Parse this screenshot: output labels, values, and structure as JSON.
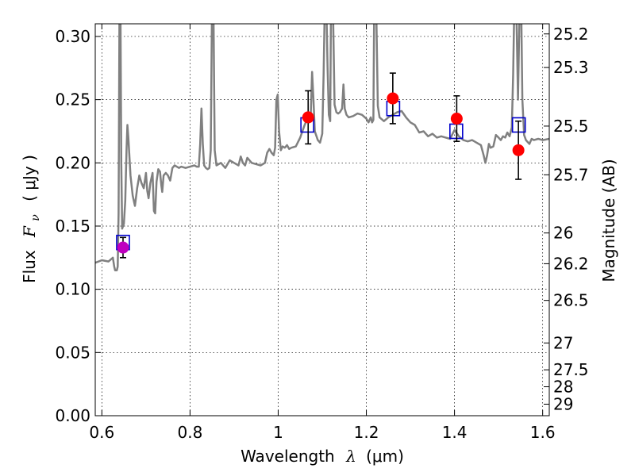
{
  "chart_data": {
    "type": "scatter",
    "xlabel_text": "Wavelength",
    "xlabel_symbol": "λ",
    "xlabel_unit": "(μm)",
    "ylabel_text": "Flux",
    "ylabel_symbol": "F",
    "ylabel_sub": "ν",
    "ylabel_unit": "( μJy )",
    "y2label": "Magnitude (AB)",
    "xlim": [
      0.585,
      1.615
    ],
    "ylim": [
      0.0,
      0.31
    ],
    "x_ticks": [
      0.6,
      0.8,
      1.0,
      1.2,
      1.4,
      1.6
    ],
    "x_tick_labels": [
      "0.6",
      "0.8",
      "1",
      "1.2",
      "1.4",
      "1.6"
    ],
    "y_ticks": [
      0.0,
      0.05,
      0.1,
      0.15,
      0.2,
      0.25,
      0.3
    ],
    "y_tick_labels": [
      "0.00",
      "0.05",
      "0.10",
      "0.15",
      "0.20",
      "0.25",
      "0.30"
    ],
    "y2_tick_labels": [
      "25.2",
      "25.3",
      "25.5",
      "25.7",
      "26",
      "26.2",
      "26.5",
      "27",
      "27.5",
      "28",
      "29"
    ],
    "grid": true,
    "series": [
      {
        "kind": "spectrum_line",
        "color": "#808080",
        "points": [
          [
            0.585,
            0.121
          ],
          [
            0.6,
            0.123
          ],
          [
            0.615,
            0.122
          ],
          [
            0.625,
            0.125
          ],
          [
            0.628,
            0.118
          ],
          [
            0.63,
            0.115
          ],
          [
            0.634,
            0.115
          ],
          [
            0.636,
            0.118
          ],
          [
            0.638,
            0.16
          ],
          [
            0.64,
            0.32
          ],
          [
            0.642,
            0.33
          ],
          [
            0.644,
            0.2
          ],
          [
            0.646,
            0.148
          ],
          [
            0.65,
            0.152
          ],
          [
            0.653,
            0.17
          ],
          [
            0.656,
            0.21
          ],
          [
            0.658,
            0.23
          ],
          [
            0.66,
            0.22
          ],
          [
            0.665,
            0.19
          ],
          [
            0.67,
            0.174
          ],
          [
            0.675,
            0.166
          ],
          [
            0.68,
            0.18
          ],
          [
            0.685,
            0.19
          ],
          [
            0.69,
            0.184
          ],
          [
            0.695,
            0.18
          ],
          [
            0.7,
            0.192
          ],
          [
            0.703,
            0.178
          ],
          [
            0.706,
            0.172
          ],
          [
            0.71,
            0.184
          ],
          [
            0.715,
            0.192
          ],
          [
            0.718,
            0.162
          ],
          [
            0.721,
            0.16
          ],
          [
            0.724,
            0.185
          ],
          [
            0.728,
            0.195
          ],
          [
            0.732,
            0.193
          ],
          [
            0.735,
            0.182
          ],
          [
            0.737,
            0.177
          ],
          [
            0.74,
            0.19
          ],
          [
            0.745,
            0.192
          ],
          [
            0.75,
            0.19
          ],
          [
            0.755,
            0.186
          ],
          [
            0.76,
            0.196
          ],
          [
            0.765,
            0.198
          ],
          [
            0.77,
            0.197
          ],
          [
            0.775,
            0.196
          ],
          [
            0.78,
            0.197
          ],
          [
            0.79,
            0.196
          ],
          [
            0.8,
            0.197
          ],
          [
            0.81,
            0.198
          ],
          [
            0.815,
            0.197
          ],
          [
            0.82,
            0.197
          ],
          [
            0.823,
            0.215
          ],
          [
            0.826,
            0.243
          ],
          [
            0.829,
            0.215
          ],
          [
            0.832,
            0.198
          ],
          [
            0.836,
            0.196
          ],
          [
            0.84,
            0.195
          ],
          [
            0.844,
            0.196
          ],
          [
            0.847,
            0.21
          ],
          [
            0.85,
            0.33
          ],
          [
            0.853,
            0.33
          ],
          [
            0.856,
            0.21
          ],
          [
            0.86,
            0.198
          ],
          [
            0.87,
            0.2
          ],
          [
            0.88,
            0.196
          ],
          [
            0.89,
            0.202
          ],
          [
            0.9,
            0.2
          ],
          [
            0.91,
            0.198
          ],
          [
            0.915,
            0.205
          ],
          [
            0.92,
            0.2
          ],
          [
            0.925,
            0.198
          ],
          [
            0.93,
            0.204
          ],
          [
            0.94,
            0.2
          ],
          [
            0.95,
            0.199
          ],
          [
            0.96,
            0.198
          ],
          [
            0.97,
            0.2
          ],
          [
            0.975,
            0.208
          ],
          [
            0.98,
            0.211
          ],
          [
            0.985,
            0.208
          ],
          [
            0.99,
            0.206
          ],
          [
            0.993,
            0.212
          ],
          [
            0.996,
            0.25
          ],
          [
            0.999,
            0.254
          ],
          [
            1.002,
            0.225
          ],
          [
            1.006,
            0.21
          ],
          [
            1.01,
            0.213
          ],
          [
            1.015,
            0.212
          ],
          [
            1.02,
            0.214
          ],
          [
            1.025,
            0.211
          ],
          [
            1.03,
            0.212
          ],
          [
            1.04,
            0.213
          ],
          [
            1.05,
            0.22
          ],
          [
            1.06,
            0.23
          ],
          [
            1.065,
            0.234
          ],
          [
            1.07,
            0.232
          ],
          [
            1.074,
            0.24
          ],
          [
            1.077,
            0.272
          ],
          [
            1.08,
            0.25
          ],
          [
            1.083,
            0.225
          ],
          [
            1.086,
            0.222
          ],
          [
            1.09,
            0.218
          ],
          [
            1.095,
            0.216
          ],
          [
            1.1,
            0.223
          ],
          [
            1.103,
            0.27
          ],
          [
            1.106,
            0.33
          ],
          [
            1.109,
            0.33
          ],
          [
            1.112,
            0.275
          ],
          [
            1.115,
            0.238
          ],
          [
            1.118,
            0.233
          ],
          [
            1.12,
            0.33
          ],
          [
            1.124,
            0.33
          ],
          [
            1.128,
            0.246
          ],
          [
            1.132,
            0.24
          ],
          [
            1.136,
            0.239
          ],
          [
            1.14,
            0.24
          ],
          [
            1.145,
            0.243
          ],
          [
            1.148,
            0.262
          ],
          [
            1.151,
            0.243
          ],
          [
            1.155,
            0.238
          ],
          [
            1.16,
            0.236
          ],
          [
            1.17,
            0.237
          ],
          [
            1.18,
            0.239
          ],
          [
            1.19,
            0.238
          ],
          [
            1.2,
            0.235
          ],
          [
            1.205,
            0.232
          ],
          [
            1.21,
            0.236
          ],
          [
            1.213,
            0.232
          ],
          [
            1.216,
            0.234
          ],
          [
            1.218,
            0.33
          ],
          [
            1.222,
            0.33
          ],
          [
            1.226,
            0.245
          ],
          [
            1.23,
            0.236
          ],
          [
            1.24,
            0.233
          ],
          [
            1.25,
            0.236
          ],
          [
            1.26,
            0.238
          ],
          [
            1.27,
            0.24
          ],
          [
            1.28,
            0.241
          ],
          [
            1.29,
            0.236
          ],
          [
            1.3,
            0.232
          ],
          [
            1.31,
            0.23
          ],
          [
            1.32,
            0.224
          ],
          [
            1.33,
            0.225
          ],
          [
            1.34,
            0.221
          ],
          [
            1.35,
            0.223
          ],
          [
            1.36,
            0.22
          ],
          [
            1.37,
            0.221
          ],
          [
            1.38,
            0.22
          ],
          [
            1.39,
            0.219
          ],
          [
            1.4,
            0.226
          ],
          [
            1.41,
            0.221
          ],
          [
            1.42,
            0.218
          ],
          [
            1.43,
            0.217
          ],
          [
            1.44,
            0.218
          ],
          [
            1.45,
            0.216
          ],
          [
            1.46,
            0.214
          ],
          [
            1.466,
            0.206
          ],
          [
            1.47,
            0.2
          ],
          [
            1.474,
            0.206
          ],
          [
            1.478,
            0.215
          ],
          [
            1.482,
            0.212
          ],
          [
            1.488,
            0.213
          ],
          [
            1.494,
            0.222
          ],
          [
            1.5,
            0.22
          ],
          [
            1.505,
            0.218
          ],
          [
            1.51,
            0.221
          ],
          [
            1.515,
            0.22
          ],
          [
            1.52,
            0.224
          ],
          [
            1.525,
            0.221
          ],
          [
            1.53,
            0.228
          ],
          [
            1.533,
            0.27
          ],
          [
            1.536,
            0.33
          ],
          [
            1.54,
            0.33
          ],
          [
            1.544,
            0.25
          ],
          [
            1.548,
            0.33
          ],
          [
            1.551,
            0.33
          ],
          [
            1.554,
            0.25
          ],
          [
            1.558,
            0.222
          ],
          [
            1.562,
            0.218
          ],
          [
            1.57,
            0.215
          ],
          [
            1.575,
            0.219
          ],
          [
            1.58,
            0.218
          ],
          [
            1.59,
            0.219
          ],
          [
            1.6,
            0.218
          ],
          [
            1.615,
            0.219
          ]
        ]
      },
      {
        "kind": "observed_points",
        "marker": "circle",
        "color": "#ff0000",
        "points": [
          {
            "x": 0.648,
            "y": 0.133,
            "err": 0.008,
            "color": "#bf00bf"
          },
          {
            "x": 1.068,
            "y": 0.236,
            "err": 0.021,
            "color": "#ff0000"
          },
          {
            "x": 1.26,
            "y": 0.251,
            "err": 0.02,
            "color": "#ff0000"
          },
          {
            "x": 1.405,
            "y": 0.235,
            "err": 0.018,
            "color": "#ff0000"
          },
          {
            "x": 1.545,
            "y": 0.21,
            "err": 0.023,
            "color": "#ff0000"
          }
        ]
      },
      {
        "kind": "model_points",
        "marker": "square-open",
        "color": "#0000cc",
        "points": [
          {
            "x": 0.648,
            "y": 0.137
          },
          {
            "x": 1.066,
            "y": 0.23
          },
          {
            "x": 1.261,
            "y": 0.243
          },
          {
            "x": 1.404,
            "y": 0.225
          },
          {
            "x": 1.546,
            "y": 0.23
          }
        ]
      }
    ]
  }
}
